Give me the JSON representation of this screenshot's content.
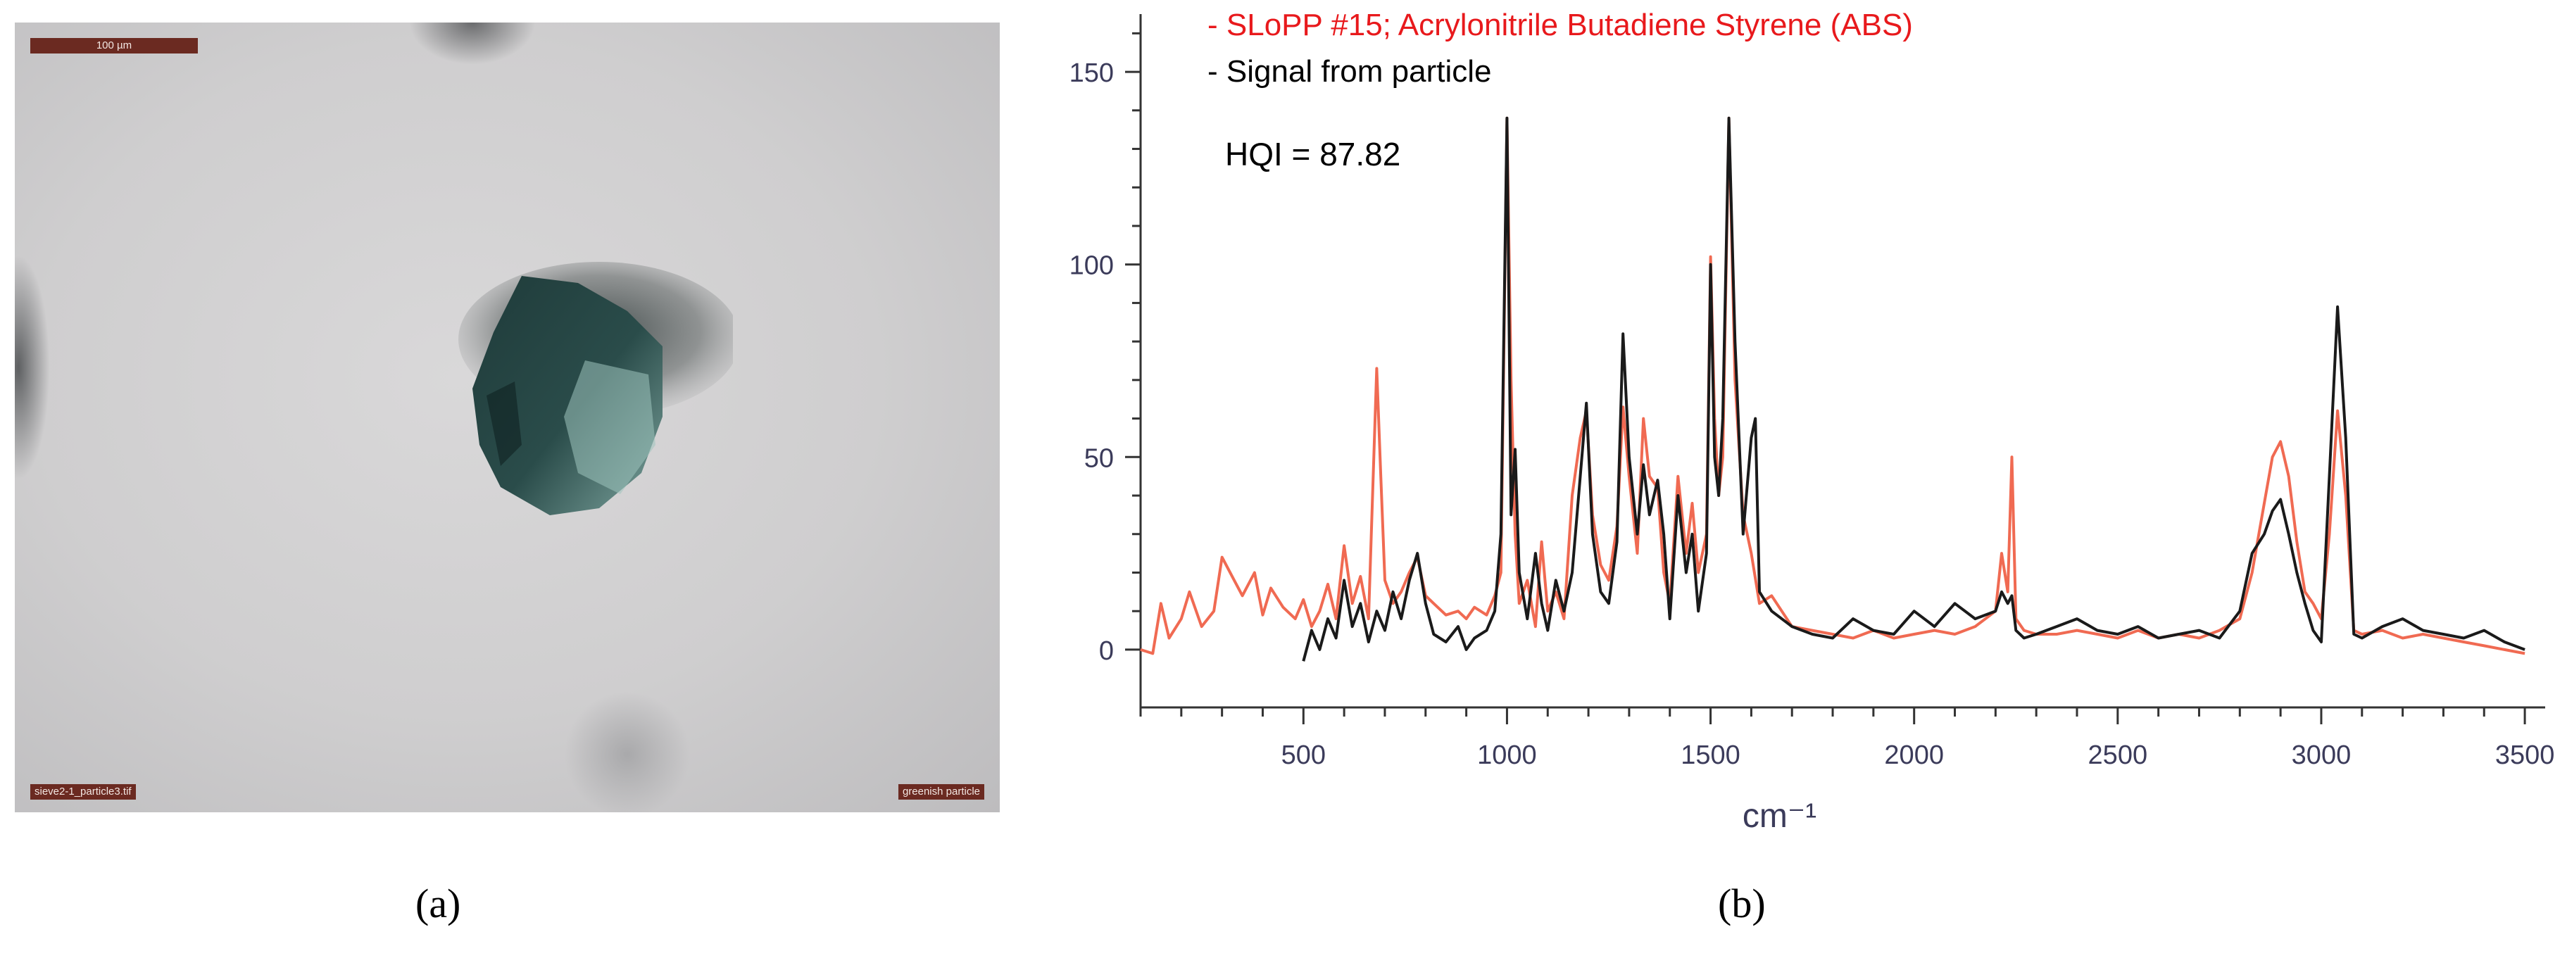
{
  "micrograph": {
    "scale_label": "100 µm",
    "file_label": "sieve2-1_particle3.tif",
    "description_label": "greenish particle"
  },
  "captions": {
    "a": "(a)",
    "b": "(b)"
  },
  "chart_data": {
    "type": "line",
    "xlabel": "cm⁻¹",
    "ylabel": "",
    "xlim": [
      100,
      3550
    ],
    "ylim": [
      -15,
      165
    ],
    "xticks": [
      500,
      1000,
      1500,
      2000,
      2500,
      3000,
      3500
    ],
    "yticks": [
      0,
      50,
      100,
      150
    ],
    "legend": [
      {
        "text": "- SLoPP #15; Acrylonitrile Butadiene Styrene (ABS)",
        "color": "#e8191c"
      },
      {
        "text": "- Signal from particle",
        "color": "#000000"
      }
    ],
    "annotation": "HQI = 87.82",
    "grid": false,
    "series": [
      {
        "name": "SLoPP #15; Acrylonitrile Butadiene Styrene (ABS)",
        "color": "#f06a52",
        "x": [
          100,
          130,
          150,
          170,
          200,
          220,
          250,
          280,
          300,
          330,
          350,
          380,
          400,
          420,
          450,
          480,
          500,
          520,
          540,
          560,
          580,
          600,
          620,
          640,
          660,
          680,
          690,
          700,
          720,
          740,
          760,
          780,
          800,
          820,
          850,
          880,
          900,
          920,
          950,
          970,
          985,
          1000,
          1010,
          1020,
          1030,
          1050,
          1070,
          1085,
          1100,
          1120,
          1140,
          1160,
          1180,
          1195,
          1210,
          1230,
          1250,
          1270,
          1285,
          1300,
          1320,
          1335,
          1350,
          1370,
          1385,
          1400,
          1420,
          1440,
          1455,
          1470,
          1490,
          1500,
          1510,
          1520,
          1530,
          1545,
          1560,
          1580,
          1600,
          1620,
          1650,
          1700,
          1750,
          1800,
          1850,
          1900,
          1950,
          2000,
          2050,
          2100,
          2150,
          2200,
          2215,
          2230,
          2240,
          2250,
          2270,
          2300,
          2350,
          2400,
          2450,
          2500,
          2550,
          2600,
          2650,
          2700,
          2750,
          2800,
          2830,
          2860,
          2880,
          2900,
          2920,
          2940,
          2960,
          2980,
          3000,
          3020,
          3040,
          3060,
          3080,
          3100,
          3150,
          3200,
          3250,
          3300,
          3350,
          3400,
          3450,
          3500
        ],
        "y": [
          0,
          -1,
          12,
          3,
          8,
          15,
          6,
          10,
          24,
          18,
          14,
          20,
          9,
          16,
          11,
          8,
          13,
          6,
          10,
          17,
          8,
          27,
          12,
          19,
          8,
          73,
          45,
          18,
          12,
          15,
          20,
          24,
          14,
          12,
          9,
          10,
          8,
          11,
          9,
          14,
          20,
          138,
          70,
          30,
          12,
          18,
          6,
          28,
          10,
          15,
          8,
          40,
          55,
          62,
          35,
          22,
          18,
          32,
          63,
          45,
          25,
          60,
          45,
          42,
          20,
          12,
          45,
          25,
          38,
          20,
          30,
          102,
          60,
          40,
          50,
          138,
          70,
          35,
          25,
          12,
          14,
          6,
          5,
          4,
          3,
          5,
          3,
          4,
          5,
          4,
          6,
          10,
          25,
          15,
          50,
          8,
          5,
          4,
          4,
          5,
          4,
          3,
          5,
          3,
          4,
          3,
          5,
          8,
          20,
          38,
          50,
          54,
          45,
          28,
          15,
          12,
          8,
          30,
          62,
          40,
          5,
          4,
          5,
          3,
          4,
          3,
          2,
          1,
          0,
          -1
        ]
      },
      {
        "name": "Signal from particle",
        "color": "#1a1a1a",
        "x": [
          500,
          520,
          540,
          560,
          580,
          600,
          620,
          640,
          660,
          680,
          700,
          720,
          740,
          760,
          780,
          800,
          820,
          850,
          880,
          900,
          920,
          950,
          970,
          985,
          1000,
          1010,
          1020,
          1030,
          1050,
          1070,
          1085,
          1100,
          1120,
          1140,
          1160,
          1180,
          1195,
          1210,
          1230,
          1250,
          1270,
          1285,
          1300,
          1320,
          1335,
          1350,
          1370,
          1385,
          1400,
          1420,
          1440,
          1455,
          1470,
          1490,
          1500,
          1510,
          1520,
          1530,
          1545,
          1560,
          1580,
          1600,
          1610,
          1620,
          1650,
          1700,
          1750,
          1800,
          1850,
          1900,
          1950,
          2000,
          2050,
          2100,
          2150,
          2200,
          2215,
          2230,
          2240,
          2250,
          2270,
          2300,
          2350,
          2400,
          2450,
          2500,
          2550,
          2600,
          2650,
          2700,
          2750,
          2800,
          2830,
          2860,
          2880,
          2900,
          2920,
          2940,
          2960,
          2980,
          3000,
          3020,
          3040,
          3060,
          3080,
          3100,
          3150,
          3200,
          3250,
          3300,
          3350,
          3400,
          3450,
          3500
        ],
        "y": [
          -3,
          5,
          0,
          8,
          3,
          18,
          6,
          12,
          2,
          10,
          5,
          15,
          8,
          18,
          25,
          12,
          4,
          2,
          6,
          0,
          3,
          5,
          10,
          30,
          138,
          35,
          52,
          20,
          8,
          25,
          12,
          5,
          18,
          10,
          20,
          45,
          64,
          30,
          15,
          12,
          28,
          82,
          50,
          30,
          48,
          35,
          44,
          30,
          8,
          40,
          20,
          30,
          10,
          25,
          100,
          50,
          40,
          60,
          138,
          80,
          30,
          55,
          60,
          15,
          10,
          6,
          4,
          3,
          8,
          5,
          4,
          10,
          6,
          12,
          8,
          10,
          15,
          12,
          14,
          5,
          3,
          4,
          6,
          8,
          5,
          4,
          6,
          3,
          4,
          5,
          3,
          10,
          25,
          30,
          36,
          39,
          30,
          20,
          12,
          5,
          2,
          45,
          89,
          55,
          4,
          3,
          6,
          8,
          5,
          4,
          3,
          5,
          2,
          0
        ]
      }
    ]
  }
}
